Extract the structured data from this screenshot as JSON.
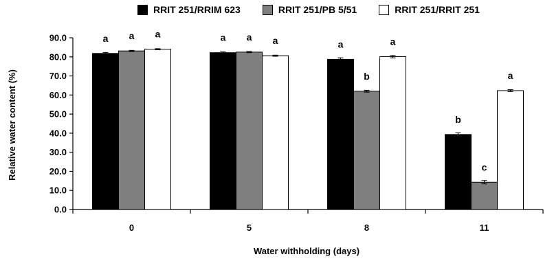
{
  "chart_data": {
    "type": "bar",
    "xlabel": "Water withholding (days)",
    "ylabel": "Relative water content (%)",
    "ylim": [
      0,
      90
    ],
    "yticks": [
      "0.0",
      "10.0",
      "20.0",
      "30.0",
      "40.0",
      "50.0",
      "60.0",
      "70.0",
      "80.0",
      "90.0"
    ],
    "categories": [
      "0",
      "5",
      "8",
      "11"
    ],
    "grid": false,
    "legend_position": "top",
    "series": [
      {
        "name": "RRIT 251/RRIM 623",
        "color": "#000000",
        "values": [
          81.8,
          82.2,
          78.7,
          39.3
        ],
        "errors": [
          0.5,
          0.4,
          0.8,
          0.9
        ],
        "letters": [
          "a",
          "a",
          "a",
          "b"
        ]
      },
      {
        "name": "RRIT 251/PB 5/51",
        "color": "#7f7f7f",
        "values": [
          83.1,
          82.5,
          62.0,
          14.3
        ],
        "errors": [
          0.3,
          0.3,
          0.5,
          0.9
        ],
        "letters": [
          "a",
          "a",
          "b",
          "c"
        ]
      },
      {
        "name": "RRIT 251/RRIT 251",
        "color": "#ffffff",
        "values": [
          84.0,
          80.6,
          80.1,
          62.3
        ],
        "errors": [
          0.3,
          0.3,
          0.6,
          0.5
        ],
        "letters": [
          "a",
          "a",
          "a",
          "a"
        ]
      }
    ]
  }
}
